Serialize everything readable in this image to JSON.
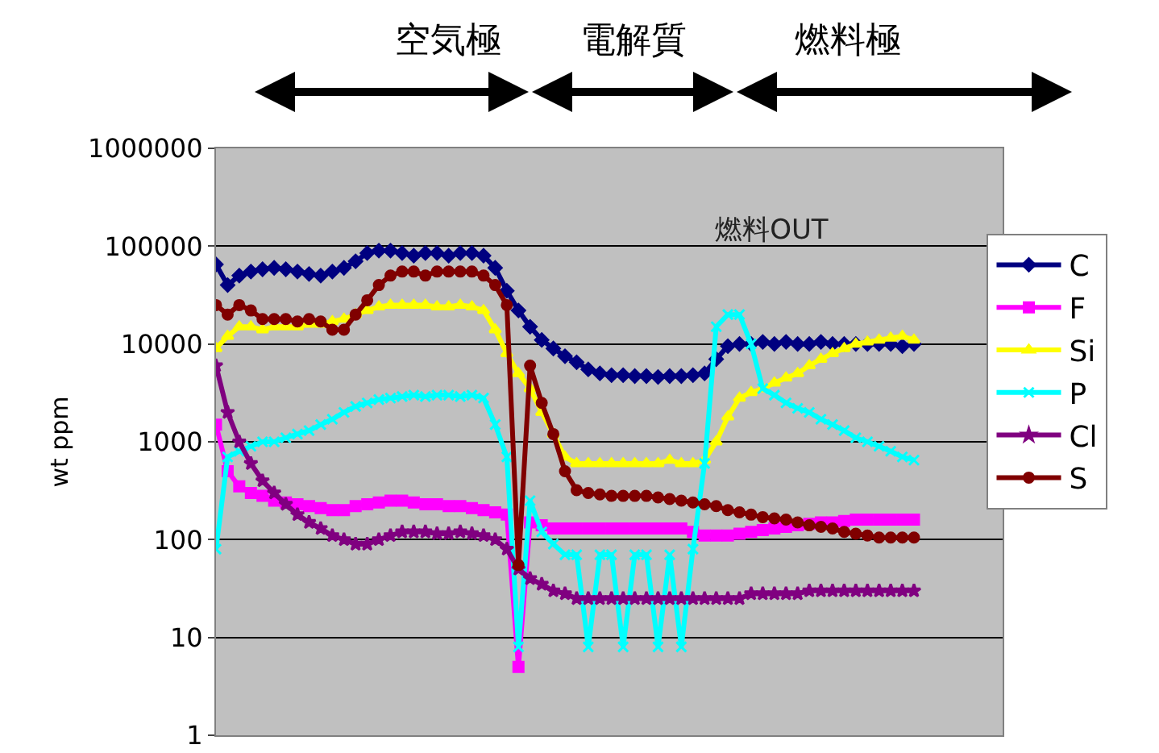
{
  "chart_data": {
    "type": "line",
    "ylabel": "wt ppm",
    "log": true,
    "ylim": [
      1,
      1000000
    ],
    "yticks": [
      1,
      10,
      100,
      1000,
      10000,
      100000,
      1000000
    ],
    "grid": "y",
    "legend": "right",
    "tick_labels": "y",
    "annotations": [
      "空気極",
      "電解質",
      "燃料極",
      "燃料OUT"
    ],
    "categories": [
      null,
      null,
      null,
      null,
      null,
      null,
      null,
      null,
      null,
      null,
      null,
      null,
      null,
      null,
      null,
      null,
      null,
      null,
      null,
      null,
      null,
      null,
      null,
      null,
      null,
      null,
      null,
      null,
      null,
      null,
      null,
      null,
      null,
      null,
      null,
      null,
      null,
      null,
      null,
      null,
      null,
      null,
      null,
      null,
      null,
      null,
      null,
      null,
      null,
      null,
      null,
      null,
      null,
      null,
      null,
      null,
      null,
      null,
      null,
      null,
      null
    ],
    "series": [
      {
        "name": "C",
        "color": "#000080",
        "marker": "diamond",
        "values": [
          65000,
          40000,
          50000,
          55000,
          58000,
          60000,
          58000,
          55000,
          52000,
          50000,
          55000,
          60000,
          70000,
          85000,
          90000,
          90000,
          85000,
          80000,
          85000,
          85000,
          80000,
          85000,
          85000,
          80000,
          60000,
          35000,
          22000,
          15000,
          11000,
          9000,
          7500,
          6500,
          5500,
          5000,
          4800,
          4800,
          4700,
          4700,
          4600,
          4700,
          4700,
          4800,
          5000,
          7000,
          9500,
          10000,
          10000,
          10500,
          10000,
          10500,
          10000,
          10000,
          10500,
          10000,
          10000,
          10000,
          10000,
          10000,
          10000,
          9500,
          10000
        ]
      },
      {
        "name": "F",
        "color": "#ff00ff",
        "marker": "square",
        "values": [
          1500,
          500,
          350,
          300,
          280,
          250,
          240,
          230,
          220,
          210,
          200,
          200,
          220,
          230,
          240,
          250,
          250,
          240,
          230,
          230,
          220,
          220,
          210,
          200,
          190,
          180,
          5,
          150,
          140,
          130,
          130,
          130,
          130,
          130,
          130,
          130,
          130,
          130,
          130,
          130,
          130,
          120,
          110,
          110,
          110,
          115,
          120,
          125,
          130,
          135,
          140,
          145,
          150,
          150,
          155,
          160,
          160,
          160,
          160,
          160,
          160
        ]
      },
      {
        "name": "Si",
        "color": "#ffff00",
        "marker": "triangle",
        "values": [
          9000,
          12000,
          15000,
          15000,
          14000,
          15000,
          15000,
          15000,
          16000,
          16000,
          17000,
          18000,
          20000,
          22000,
          24000,
          25000,
          25000,
          25000,
          25000,
          24000,
          24000,
          25000,
          24000,
          22000,
          14000,
          8000,
          5000,
          3500,
          2000,
          1200,
          700,
          600,
          600,
          600,
          600,
          600,
          600,
          600,
          600,
          650,
          600,
          600,
          650,
          1000,
          1800,
          2800,
          3200,
          3500,
          4000,
          4500,
          5000,
          6000,
          7000,
          8000,
          9000,
          10000,
          10500,
          11000,
          11500,
          12000,
          11000
        ]
      },
      {
        "name": "P",
        "color": "#00ffff",
        "marker": "cross",
        "values": [
          80,
          700,
          800,
          900,
          1000,
          1000,
          1100,
          1200,
          1300,
          1500,
          1700,
          2000,
          2300,
          2500,
          2700,
          2800,
          2900,
          3000,
          2900,
          3000,
          3000,
          2900,
          3000,
          2800,
          1500,
          700,
          8,
          250,
          120,
          90,
          70,
          70,
          8,
          70,
          70,
          8,
          70,
          70,
          8,
          70,
          8,
          80,
          600,
          15000,
          20000,
          20000,
          10000,
          3500,
          3000,
          2500,
          2200,
          2000,
          1700,
          1500,
          1300,
          1100,
          1000,
          900,
          800,
          700,
          650
        ]
      },
      {
        "name": "Cl",
        "color": "#800080",
        "marker": "star",
        "values": [
          6000,
          2000,
          1000,
          600,
          400,
          300,
          230,
          180,
          150,
          130,
          110,
          100,
          90,
          90,
          100,
          110,
          120,
          120,
          120,
          115,
          115,
          120,
          115,
          110,
          100,
          80,
          50,
          40,
          35,
          30,
          28,
          25,
          25,
          25,
          25,
          25,
          25,
          25,
          25,
          25,
          25,
          25,
          25,
          25,
          25,
          25,
          28,
          28,
          28,
          28,
          28,
          30,
          30,
          30,
          30,
          30,
          30,
          30,
          30,
          30,
          30
        ]
      },
      {
        "name": "S",
        "color": "#800000",
        "marker": "circle",
        "values": [
          25000,
          20000,
          25000,
          22000,
          18000,
          18000,
          18000,
          17000,
          18000,
          17000,
          14000,
          14000,
          20000,
          28000,
          40000,
          50000,
          55000,
          55000,
          50000,
          55000,
          55000,
          55000,
          55000,
          50000,
          40000,
          25000,
          55,
          6000,
          2500,
          1200,
          500,
          320,
          300,
          290,
          280,
          280,
          280,
          280,
          270,
          260,
          250,
          240,
          230,
          220,
          200,
          190,
          180,
          170,
          165,
          160,
          150,
          140,
          135,
          130,
          120,
          115,
          110,
          105,
          105,
          105,
          105
        ]
      }
    ]
  }
}
